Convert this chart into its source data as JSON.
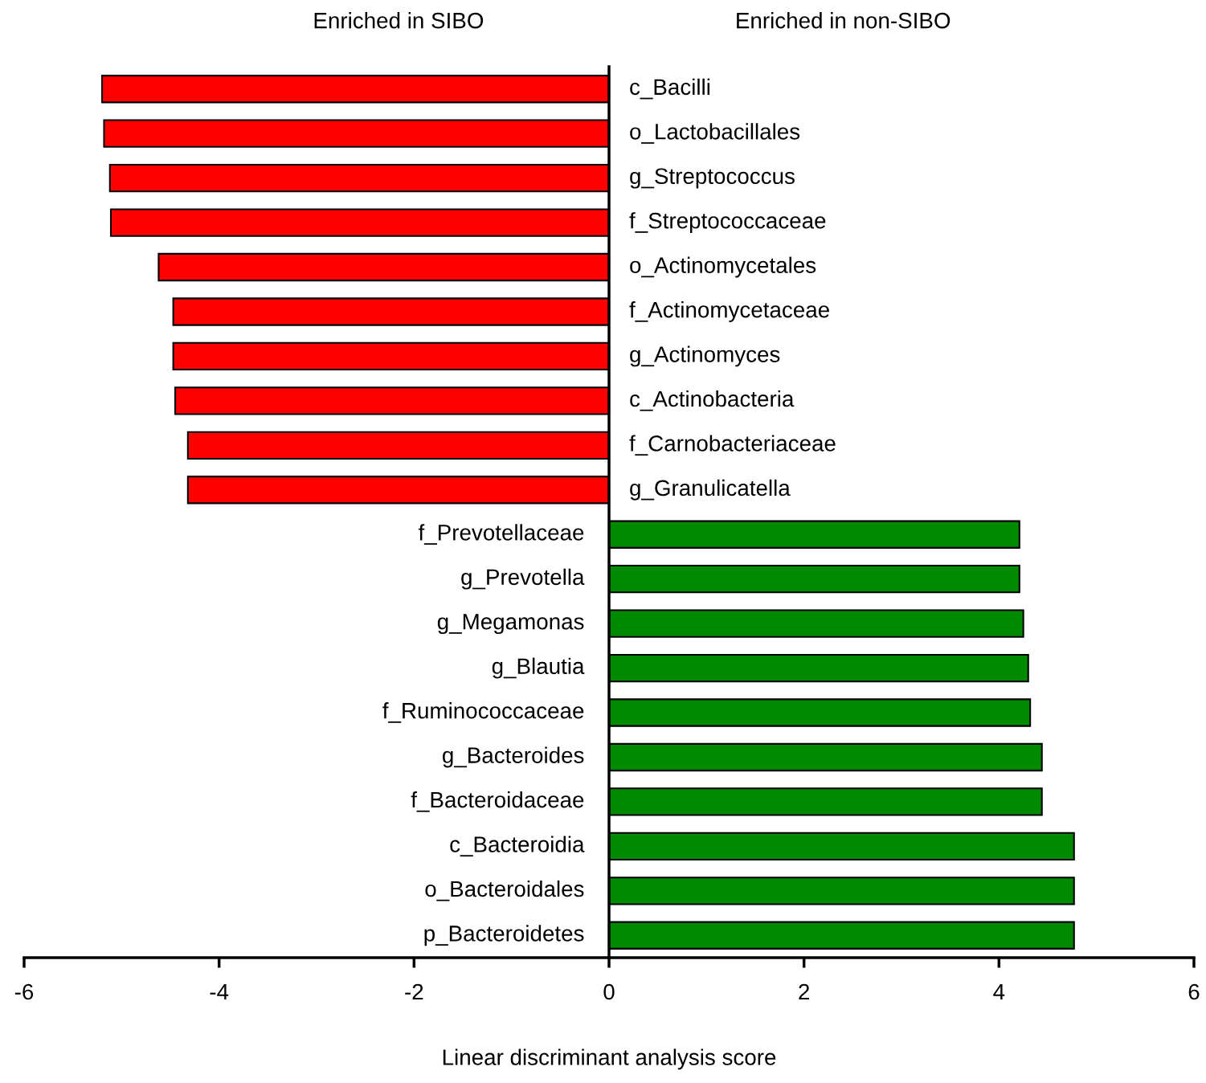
{
  "chart_data": {
    "type": "bar",
    "orientation": "horizontal",
    "annotations": [
      "Enriched in SIBO",
      "Enriched in non-SIBO"
    ],
    "xlabel": "Linear discriminant analysis score",
    "categories": [
      "c_Bacilli",
      "o_Lactobacillales",
      "g_Streptococcus",
      "f_Streptococcaceae",
      "o_Actinomycetales",
      "f_Actinomycetaceae",
      "g_Actinomyces",
      "c_Actinobacteria",
      "f_Carnobacteriaceae",
      "g_Granulicatella",
      "f_Prevotellaceae",
      "g_Prevotella",
      "g_Megamonas",
      "g_Blautia",
      "f_Ruminococcaceae",
      "g_Bacteroides",
      "f_Bacteroidaceae",
      "c_Bacteroidia",
      "o_Bacteroidales",
      "p_Bacteroidetes"
    ],
    "values": [
      -5.2,
      -5.18,
      -5.12,
      -5.11,
      -4.62,
      -4.47,
      -4.47,
      -4.45,
      -4.32,
      -4.32,
      4.21,
      4.21,
      4.25,
      4.3,
      4.32,
      4.44,
      4.44,
      4.77,
      4.77,
      4.77
    ],
    "colors": [
      "#ff0000",
      "#ff0000",
      "#ff0000",
      "#ff0000",
      "#ff0000",
      "#ff0000",
      "#ff0000",
      "#ff0000",
      "#ff0000",
      "#ff0000",
      "#008a00",
      "#008a00",
      "#008a00",
      "#008a00",
      "#008a00",
      "#008a00",
      "#008a00",
      "#008a00",
      "#008a00",
      "#008a00"
    ],
    "xlim": [
      -6,
      6
    ],
    "xticks": [
      -6,
      -4,
      -2,
      0,
      2,
      4,
      6
    ]
  }
}
